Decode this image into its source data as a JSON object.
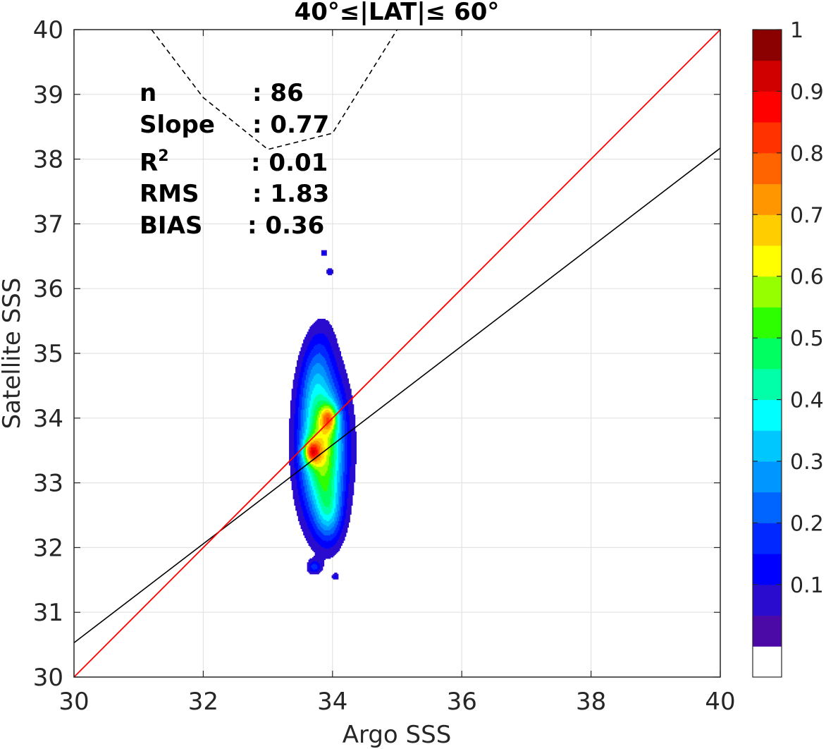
{
  "chart_data": {
    "type": "contour",
    "title": "40°≤|LAT|≤ 60°",
    "xlabel": "Argo SSS",
    "ylabel": "Satellite SSS",
    "xlim": [
      30,
      40
    ],
    "ylim": [
      30,
      40
    ],
    "xticks": [
      "30",
      "32",
      "34",
      "36",
      "38",
      "40"
    ],
    "yticks": [
      "30",
      "31",
      "32",
      "33",
      "34",
      "35",
      "36",
      "37",
      "38",
      "39",
      "40"
    ],
    "grid": true,
    "stats": {
      "n_label": "n",
      "n_value": ": 86",
      "slope_label": "Slope",
      "slope_value": ": 0.77",
      "r2_label": "R",
      "r2_sup": "2",
      "r2_value": ": 0.01",
      "rms_label": "RMS",
      "rms_value": ": 1.83",
      "bias_label": "BIAS",
      "bias_value": ": 0.36"
    },
    "lines": {
      "identity": {
        "color": "#ff0000",
        "x": [
          30,
          40
        ],
        "y": [
          30,
          40
        ]
      },
      "fit": {
        "color": "#000000",
        "x": [
          30,
          40
        ],
        "y": [
          30.53,
          38.17
        ]
      },
      "dashed": {
        "color": "#000000",
        "x": [
          31.2,
          32.0,
          33.0,
          34.0,
          35.0
        ],
        "y": [
          40.0,
          38.95,
          38.15,
          38.4,
          40.0
        ]
      }
    },
    "density_peaks": [
      {
        "x": 33.68,
        "y": 33.48,
        "peak": 0.95
      },
      {
        "x": 33.95,
        "y": 34.0,
        "peak": 0.85
      }
    ],
    "small_features": [
      {
        "x": 33.72,
        "y": 31.7,
        "value": 0.12
      },
      {
        "x": 34.05,
        "y": 31.55,
        "value": 0.08
      },
      {
        "x": 33.87,
        "y": 36.55,
        "value": 0.08
      },
      {
        "x": 33.96,
        "y": 36.26,
        "value": 0.08
      }
    ],
    "colorbar": {
      "ticks": [
        "0.1",
        "0.2",
        "0.3",
        "0.4",
        "0.5",
        "0.6",
        "0.7",
        "0.8",
        "0.9",
        "1"
      ],
      "levels": 20,
      "colors": [
        "#ffffff",
        "#4b0aa6",
        "#2a0ccf",
        "#0000ff",
        "#0028ff",
        "#0064ff",
        "#0096ff",
        "#00c8ff",
        "#00ffff",
        "#00ffa8",
        "#00ff60",
        "#2eff00",
        "#96ff00",
        "#ffff00",
        "#ffcd00",
        "#ff9600",
        "#ff6400",
        "#ff3200",
        "#ff0000",
        "#d00000",
        "#8b0000"
      ]
    }
  }
}
